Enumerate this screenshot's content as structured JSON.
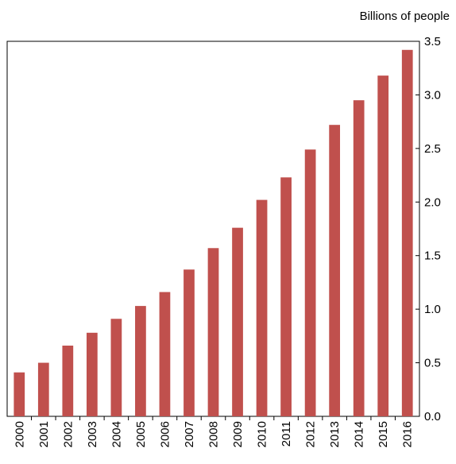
{
  "chart_data": {
    "type": "bar",
    "ylabel": "Billions of people",
    "categories": [
      "2000",
      "2001",
      "2002",
      "2003",
      "2004",
      "2005",
      "2006",
      "2007",
      "2008",
      "2009",
      "2010",
      "2011",
      "2012",
      "2013",
      "2014",
      "2015",
      "2016"
    ],
    "series": [
      {
        "values": [
          0.41,
          0.5,
          0.66,
          0.78,
          0.91,
          1.03,
          1.16,
          1.37,
          1.57,
          1.76,
          2.02,
          2.23,
          2.49,
          2.72,
          2.95,
          3.18,
          3.42
        ]
      }
    ],
    "ylim": [
      0,
      3.5
    ],
    "yticks": [
      "0.0",
      "0.5",
      "1.0",
      "1.5",
      "2.0",
      "2.5",
      "3.0",
      "3.5"
    ],
    "y_axis_side": "right",
    "grid": false,
    "bar_color": "#c0504d"
  }
}
